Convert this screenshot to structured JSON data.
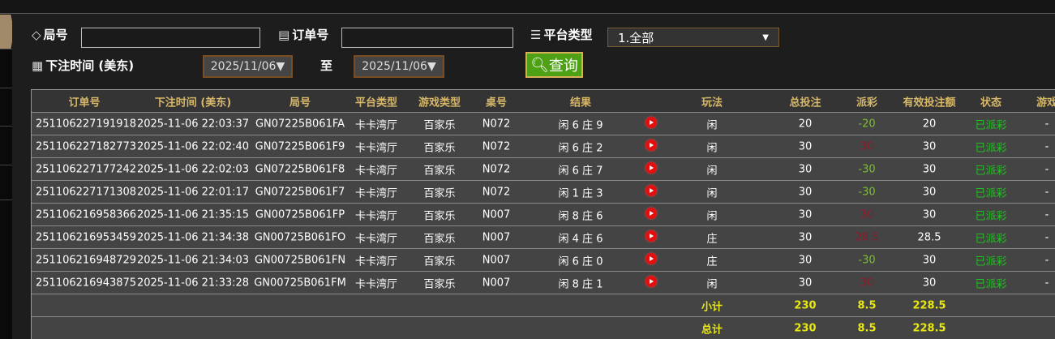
{
  "filters": {
    "round_label": "局号",
    "round_value": "",
    "order_label": "订单号",
    "order_value": "",
    "platform_label": "平台类型",
    "platform_value": "1.全部",
    "time_label": "下注时间 (美东)",
    "date_from": "2025/11/06▼",
    "to_label": "至",
    "date_to": "2025/11/06▼",
    "search_label": "查询"
  },
  "table": {
    "headers": [
      "订单号",
      "下注时间 (美东)",
      "局号",
      "平台类型",
      "游戏类型",
      "桌号",
      "结果",
      "",
      "玩法",
      "总投注",
      "派彩",
      "有效投注额",
      "状态",
      "游戏"
    ],
    "rows": [
      {
        "order": "251106227191918",
        "time": "2025-11-06 22:03:37",
        "round": "GN07225B061FA",
        "platform": "卡卡湾厅",
        "game": "百家乐",
        "table": "N072",
        "result": "闲 6 庄 9",
        "play": "闲",
        "bet": "20",
        "payout": "-20",
        "payout_type": "neg",
        "valid": "20",
        "status": "已派彩",
        "extra": "-"
      },
      {
        "order": "251106227182773",
        "time": "2025-11-06 22:02:40",
        "round": "GN07225B061F9",
        "platform": "卡卡湾厅",
        "game": "百家乐",
        "table": "N072",
        "result": "闲 6 庄 2",
        "play": "闲",
        "bet": "30",
        "payout": "30",
        "payout_type": "pos",
        "valid": "30",
        "status": "已派彩",
        "extra": "-"
      },
      {
        "order": "251106227177242",
        "time": "2025-11-06 22:02:03",
        "round": "GN07225B061F8",
        "platform": "卡卡湾厅",
        "game": "百家乐",
        "table": "N072",
        "result": "闲 6 庄 7",
        "play": "闲",
        "bet": "30",
        "payout": "-30",
        "payout_type": "neg",
        "valid": "30",
        "status": "已派彩",
        "extra": "-"
      },
      {
        "order": "251106227171308",
        "time": "2025-11-06 22:01:17",
        "round": "GN07225B061F7",
        "platform": "卡卡湾厅",
        "game": "百家乐",
        "table": "N072",
        "result": "闲 1 庄 3",
        "play": "闲",
        "bet": "30",
        "payout": "-30",
        "payout_type": "neg",
        "valid": "30",
        "status": "已派彩",
        "extra": "-"
      },
      {
        "order": "251106216958366",
        "time": "2025-11-06 21:35:15",
        "round": "GN00725B061FP",
        "platform": "卡卡湾厅",
        "game": "百家乐",
        "table": "N007",
        "result": "闲 8 庄 6",
        "play": "闲",
        "bet": "30",
        "payout": "30",
        "payout_type": "pos",
        "valid": "30",
        "status": "已派彩",
        "extra": "-"
      },
      {
        "order": "251106216953459",
        "time": "2025-11-06 21:34:38",
        "round": "GN00725B061FO",
        "platform": "卡卡湾厅",
        "game": "百家乐",
        "table": "N007",
        "result": "闲 4 庄 6",
        "play": "庄",
        "bet": "30",
        "payout": "28.5",
        "payout_type": "pos",
        "valid": "28.5",
        "status": "已派彩",
        "extra": "-"
      },
      {
        "order": "251106216948729",
        "time": "2025-11-06 21:34:03",
        "round": "GN00725B061FN",
        "platform": "卡卡湾厅",
        "game": "百家乐",
        "table": "N007",
        "result": "闲 6 庄 0",
        "play": "庄",
        "bet": "30",
        "payout": "-30",
        "payout_type": "neg",
        "valid": "30",
        "status": "已派彩",
        "extra": "-"
      },
      {
        "order": "251106216943875",
        "time": "2025-11-06 21:33:28",
        "round": "GN00725B061FM",
        "platform": "卡卡湾厅",
        "game": "百家乐",
        "table": "N007",
        "result": "闲 8 庄 1",
        "play": "闲",
        "bet": "30",
        "payout": "30",
        "payout_type": "pos",
        "valid": "30",
        "status": "已派彩",
        "extra": "-"
      }
    ],
    "subtotal": {
      "label": "小计",
      "bet": "230",
      "payout": "8.5",
      "valid": "228.5"
    },
    "total": {
      "label": "总计",
      "bet": "230",
      "payout": "8.5",
      "valid": "228.5"
    }
  },
  "colors": {
    "header_text": "#d8b868",
    "negative": "#79c12b",
    "positive": "#8a1c2c",
    "status": "#22c022",
    "totals": "#e8e810",
    "search_button": "#4ea014"
  }
}
